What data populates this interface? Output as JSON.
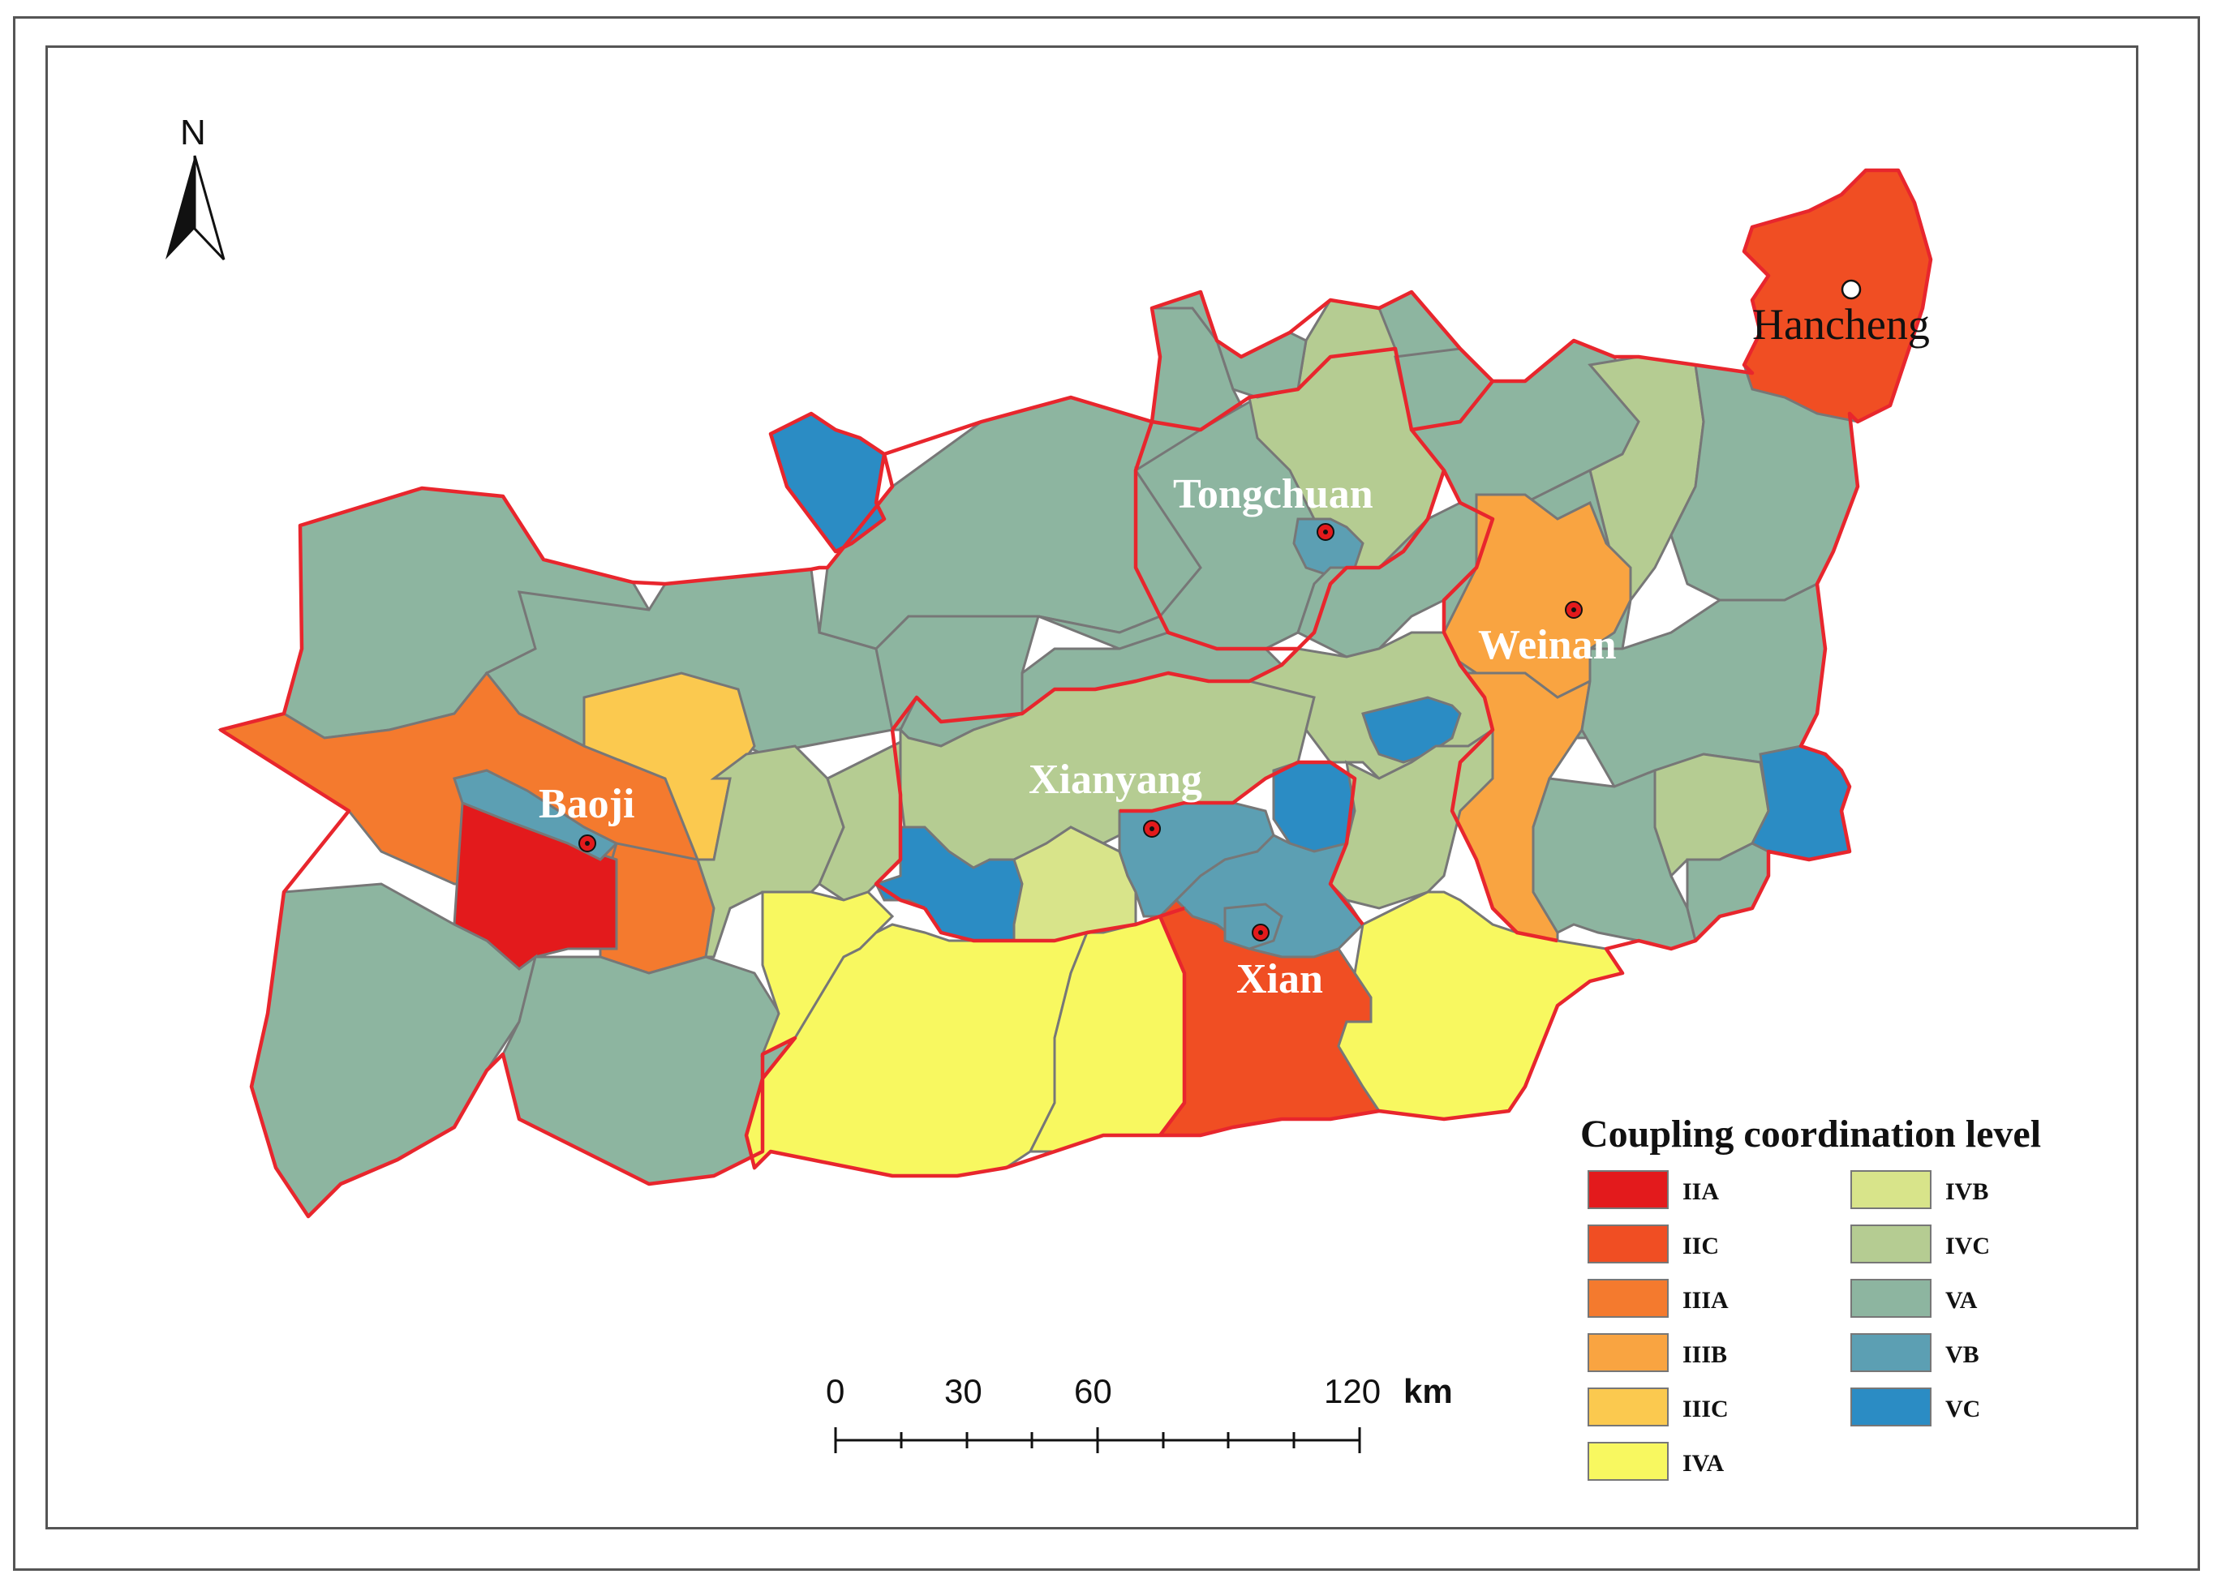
{
  "map": {
    "north_label": "N",
    "cities": {
      "hancheng": "Hancheng",
      "tongchuan": "Tongchuan",
      "weinan": "Weinan",
      "baoji": "Baoji",
      "xianyang": "Xianyang",
      "xian": "Xian"
    },
    "colors": {
      "IIA": "#e31a1c",
      "IIC": "#f04e23",
      "IIIA": "#f47a2e",
      "IIIB": "#f9a441",
      "IIIC": "#fbc94f",
      "IVA": "#f8f860",
      "IVB": "#d8e48a",
      "IVC": "#b5cc92",
      "VA": "#8db5a0",
      "VB": "#5c9fb3",
      "VC": "#2b8cc4"
    }
  },
  "legend": {
    "title": "Coupling coordination level",
    "items": [
      {
        "label": "IIA",
        "color": "#e31a1c"
      },
      {
        "label": "IIC",
        "color": "#f04e23"
      },
      {
        "label": "IIIA",
        "color": "#f47a2e"
      },
      {
        "label": "IIIB",
        "color": "#f9a441"
      },
      {
        "label": "IIIC",
        "color": "#fbc94f"
      },
      {
        "label": "IVA",
        "color": "#f8f860"
      },
      {
        "label": "IVB",
        "color": "#d8e48a"
      },
      {
        "label": "IVC",
        "color": "#b5cc92"
      },
      {
        "label": "VA",
        "color": "#8db5a0"
      },
      {
        "label": "VB",
        "color": "#5c9fb3"
      },
      {
        "label": "VC",
        "color": "#2b8cc4"
      }
    ]
  },
  "scale_bar": {
    "ticks": [
      "0",
      "30",
      "60",
      "120"
    ],
    "unit": "km"
  }
}
